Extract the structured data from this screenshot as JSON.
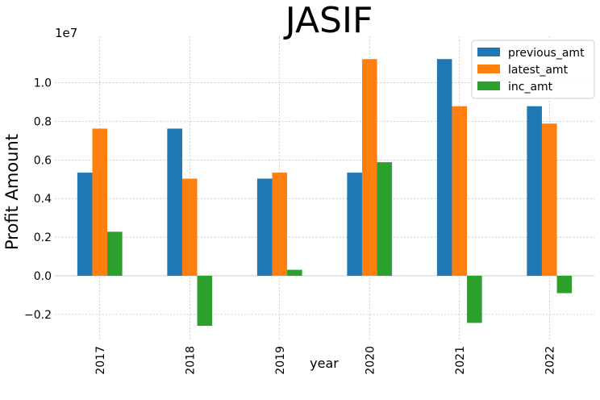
{
  "chart_data": {
    "type": "bar",
    "title": "JASIF",
    "xlabel": "year",
    "ylabel": "Profit Amount",
    "y_scale_label": "1e7",
    "categories": [
      "2017",
      "2018",
      "2019",
      "2020",
      "2021",
      "2022"
    ],
    "series": [
      {
        "name": "previous_amt",
        "color": "#1f77b4",
        "values": [
          5340000,
          7620000,
          5030000,
          5340000,
          11220000,
          8780000
        ]
      },
      {
        "name": "latest_amt",
        "color": "#ff7f0e",
        "values": [
          7620000,
          5030000,
          5340000,
          11220000,
          8780000,
          7880000
        ]
      },
      {
        "name": "inc_amt",
        "color": "#2ca02c",
        "values": [
          2280000,
          -2590000,
          310000,
          5880000,
          -2440000,
          -900000
        ]
      }
    ],
    "ylim": [
      -3300000,
      12400000
    ],
    "y_ticks": [
      -2000000,
      0,
      2000000,
      4000000,
      6000000,
      8000000,
      10000000
    ],
    "y_tick_labels": [
      "−0.2",
      "0.0",
      "0.2",
      "0.4",
      "0.6",
      "0.8",
      "1.0"
    ],
    "grid": true,
    "legend_position": "top-right"
  }
}
